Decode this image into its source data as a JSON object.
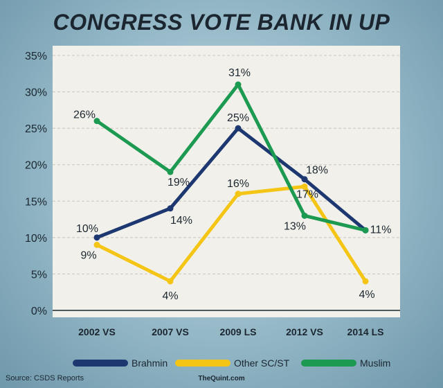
{
  "chart_data": {
    "type": "line",
    "title": "CONGRESS VOTE BANK IN UP",
    "categories": [
      "2002 VS",
      "2007 VS",
      "2009 LS",
      "2012 VS",
      "2014 LS"
    ],
    "y_ticks": [
      "0%",
      "5%",
      "10%",
      "15%",
      "20%",
      "25%",
      "30%",
      "35%"
    ],
    "ylim": [
      0,
      35
    ],
    "grid": true,
    "legend_position": "bottom",
    "series": [
      {
        "name": "Brahmin",
        "color": "#1d3771",
        "values": [
          10,
          14,
          25,
          18,
          11
        ],
        "labels": [
          "10%",
          "14%",
          "25%",
          "18%",
          "11%"
        ]
      },
      {
        "name": "Other SC/ST",
        "color": "#f4c515",
        "values": [
          9,
          4,
          16,
          17,
          4
        ],
        "labels": [
          "9%",
          "4%",
          "16%",
          "17%",
          "4%"
        ]
      },
      {
        "name": "Muslim",
        "color": "#1d9a52",
        "values": [
          26,
          19,
          31,
          13,
          11
        ],
        "labels": [
          "26%",
          "19%",
          "31%",
          "13%",
          "11%"
        ]
      }
    ]
  },
  "footer": {
    "source": "Source: CSDS Reports",
    "brand": "TheQuint.com"
  },
  "colors": {
    "plot_background": "#f1f0ea",
    "grid": "#c9c6bb",
    "text": "#1b2630"
  }
}
